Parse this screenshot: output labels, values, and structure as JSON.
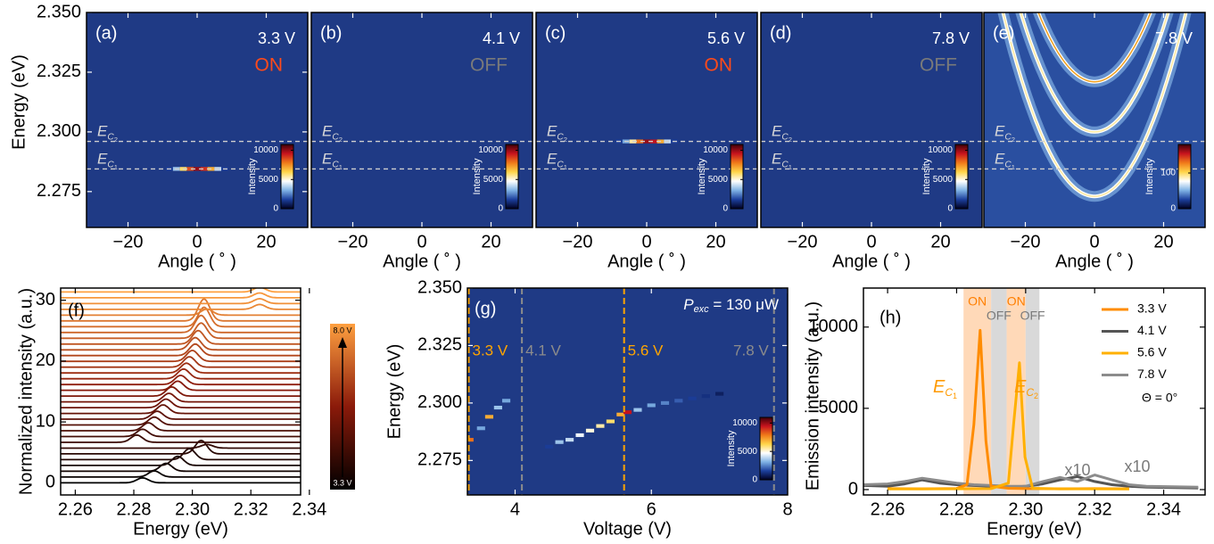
{
  "chart_data": [
    {
      "type": "angle-map",
      "panel": "(a)",
      "voltage": "3.3 V",
      "state": "ON",
      "state_color": "#ff4a1a",
      "xlabel": "Angle ( ˚ )",
      "ylabel": "Energy (eV)",
      "xlim": [
        -32,
        32
      ],
      "xticks": [
        {
          "value": -20,
          "label": "−20"
        },
        0,
        20
      ],
      "ylim": [
        2.26,
        2.35
      ],
      "yticks": [
        {
          "value": 2.35,
          "label": "2.350"
        },
        {
          "value": 2.325,
          "label": "2.325"
        },
        {
          "value": 2.3,
          "label": "2.300"
        },
        {
          "value": 2.275,
          "label": "2.275"
        }
      ],
      "mode_lines": [
        {
          "symbol": "E",
          "sub": "C",
          "index": "2",
          "value": 2.296
        },
        {
          "symbol": "E",
          "sub": "C",
          "index": "1",
          "value": 2.2845
        }
      ],
      "emission": {
        "energy": 2.2845,
        "angles": [
          -8,
          -6,
          -4,
          -2,
          0,
          2,
          4,
          6,
          8
        ],
        "intensities": [
          1500,
          3500,
          6000,
          8500,
          10000,
          9000,
          7000,
          4000,
          1500
        ]
      },
      "colorbar": {
        "label": "Intensity",
        "clim": [
          0,
          11000
        ],
        "ticks": [
          0,
          5000,
          10000
        ]
      }
    },
    {
      "type": "angle-map",
      "panel": "(b)",
      "voltage": "4.1 V",
      "state": "OFF",
      "state_color": "#7a7a7a",
      "xlabel": "Angle ( ˚ )",
      "xlim": [
        -32,
        32
      ],
      "xticks": [
        {
          "value": -20,
          "label": "−20"
        },
        0,
        20
      ],
      "ylim": [
        2.26,
        2.35
      ],
      "mode_lines": [
        {
          "symbol": "E",
          "sub": "C",
          "index": "2",
          "value": 2.296
        },
        {
          "symbol": "E",
          "sub": "C",
          "index": "1",
          "value": 2.2845
        }
      ],
      "colorbar": {
        "label": "Intensity",
        "clim": [
          0,
          11000
        ],
        "ticks": [
          0,
          5000,
          10000
        ]
      }
    },
    {
      "type": "angle-map",
      "panel": "(c)",
      "voltage": "5.6 V",
      "state": "ON",
      "state_color": "#ff4a1a",
      "xlabel": "Angle ( ˚ )",
      "xlim": [
        -32,
        32
      ],
      "xticks": [
        {
          "value": -20,
          "label": "−20"
        },
        0,
        20
      ],
      "ylim": [
        2.26,
        2.35
      ],
      "mode_lines": [
        {
          "symbol": "E",
          "sub": "C",
          "index": "2",
          "value": 2.296
        },
        {
          "symbol": "E",
          "sub": "C",
          "index": "1",
          "value": 2.2845
        }
      ],
      "emission": {
        "energy": 2.296,
        "angles": [
          -8,
          -6,
          -4,
          -2,
          0,
          2,
          4,
          6,
          8
        ],
        "intensities": [
          1500,
          3000,
          5500,
          8000,
          10000,
          9500,
          7000,
          4000,
          1500
        ]
      },
      "colorbar": {
        "label": "Intensity",
        "clim": [
          0,
          11000
        ],
        "ticks": [
          0,
          5000,
          10000
        ]
      }
    },
    {
      "type": "angle-map",
      "panel": "(d)",
      "voltage": "7.8 V",
      "state": "OFF",
      "state_color": "#7a7a7a",
      "xlabel": "Angle ( ˚ )",
      "xlim": [
        -32,
        32
      ],
      "xticks": [
        {
          "value": -20,
          "label": "−20"
        },
        0,
        20
      ],
      "ylim": [
        2.26,
        2.35
      ],
      "mode_lines": [
        {
          "symbol": "E",
          "sub": "C",
          "index": "2",
          "value": 2.296
        },
        {
          "symbol": "E",
          "sub": "C",
          "index": "1",
          "value": 2.2845
        }
      ],
      "colorbar": {
        "label": "Intensity",
        "clim": [
          0,
          11000
        ],
        "ticks": [
          0,
          5000,
          10000
        ]
      }
    },
    {
      "type": "angle-map",
      "panel": "(e)",
      "voltage": "7.8 V",
      "xlabel": "Angle ( ˚ )",
      "xlim": [
        -32,
        32
      ],
      "xticks": [
        {
          "value": -20,
          "label": "−20"
        },
        0,
        20
      ],
      "ylim": [
        2.26,
        2.35
      ],
      "mode_lines": [
        {
          "symbol": "E",
          "sub": "C",
          "index": "2",
          "value": 2.296
        },
        {
          "symbol": "E",
          "sub": "C",
          "index": "1",
          "value": 2.2845
        }
      ],
      "modes": {
        "vertex_energies": [
          2.321,
          2.3,
          2.273
        ]
      },
      "colorbar": {
        "label": "Intensity",
        "clim": [
          0,
          180
        ],
        "ticks": [
          0,
          100
        ]
      }
    },
    {
      "type": "waterfall",
      "panel": "(f)",
      "xlabel": "Energy (eV)",
      "ylabel": "Normalized intensity (a.u.)",
      "xlim": [
        2.255,
        2.337
      ],
      "xticks": [
        2.26,
        2.28,
        {
          "value": 2.3,
          "label": "2.30"
        },
        2.32,
        2.34
      ],
      "ylim": [
        -2,
        32
      ],
      "yticks": [
        0,
        10,
        20,
        30
      ],
      "colormap": [
        "#000000",
        "#8b1a0a",
        "#ffa040"
      ],
      "colorbar": {
        "top": "8.0 V",
        "bottom": "3.3 V"
      },
      "offsets": [
        0,
        0.95,
        1.9,
        2.85,
        3.8,
        4.75,
        5.7,
        6.65,
        7.6,
        8.55,
        9.5,
        10.45,
        11.4,
        12.35,
        13.3,
        14.25,
        15.2,
        16.15,
        17.1,
        18.05,
        19,
        19.95,
        20.9,
        21.85,
        22.8,
        23.75,
        24.7,
        25.65,
        26.6,
        27.55,
        28.5,
        29.45,
        30.4,
        31.35
      ],
      "peaks": [
        2.283,
        2.287,
        2.291,
        2.295,
        2.299,
        2.303,
        2.305,
        2.281,
        2.283,
        2.285,
        2.287,
        2.288,
        2.29,
        2.291,
        2.292,
        2.293,
        2.295,
        2.296,
        2.297,
        2.298,
        2.299,
        2.3,
        2.301,
        2.301,
        2.302,
        2.303,
        2.303,
        2.304,
        2.304,
        2.305,
        2.323,
        2.323,
        2.323,
        2.323
      ],
      "heights": [
        0.8,
        1,
        1.3,
        1.5,
        1.8,
        2.2,
        0.6,
        1.2,
        1.2,
        1.3,
        1.3,
        1.3,
        1.4,
        1.4,
        1.4,
        1.5,
        1.5,
        1.5,
        1.6,
        1.6,
        1.7,
        1.8,
        1.9,
        2,
        2.2,
        2.5,
        2.8,
        3.2,
        3.6,
        1,
        0.8,
        0.8,
        0.8,
        0.8
      ]
    },
    {
      "type": "voltage-map",
      "panel": "(g)",
      "xlabel": "Voltage (V)",
      "ylabel": "Energy (eV)",
      "xlim": [
        3.3,
        8
      ],
      "xticks": [
        4,
        6,
        8
      ],
      "ylim": [
        2.26,
        2.35
      ],
      "yticks": [
        {
          "value": 2.35,
          "label": "2.350"
        },
        {
          "value": 2.325,
          "label": "2.325"
        },
        {
          "value": 2.3,
          "label": "2.300"
        },
        {
          "value": 2.275,
          "label": "2.275"
        }
      ],
      "annotation": {
        "symbol": "P",
        "sub": "exc",
        "text": " = 130 μW"
      },
      "voltage_lines": [
        {
          "value": 3.3,
          "label": "3.3 V",
          "color": "#ffa500"
        },
        {
          "value": 4.1,
          "label": "4.1 V",
          "color": "#8c8c8c"
        },
        {
          "value": 5.6,
          "label": "5.6 V",
          "color": "#ffa500"
        },
        {
          "value": 7.8,
          "label": "7.8 V",
          "color": "#8c8c8c"
        }
      ],
      "voltages": [
        3.33,
        3.5,
        3.62,
        3.75,
        3.87,
        4.5,
        4.65,
        4.8,
        4.95,
        5.1,
        5.25,
        5.4,
        5.55,
        5.65,
        5.8,
        6.0,
        6.2,
        6.4,
        6.6,
        6.8,
        7.0
      ],
      "energies": [
        2.284,
        2.289,
        2.294,
        2.298,
        2.301,
        2.281,
        2.283,
        2.284,
        2.286,
        2.288,
        2.29,
        2.292,
        2.295,
        2.296,
        2.297,
        2.299,
        2.3,
        2.301,
        2.302,
        2.303,
        2.304
      ],
      "intensities": [
        8000,
        3000,
        7000,
        3500,
        3000,
        1500,
        3500,
        4000,
        4500,
        5000,
        5500,
        6000,
        7000,
        9500,
        3500,
        3000,
        2500,
        2000,
        1500,
        1200,
        800
      ],
      "colorbar": {
        "label": "Intensity",
        "clim": [
          0,
          11000
        ],
        "ticks": [
          0,
          5000,
          10000
        ]
      }
    },
    {
      "type": "line",
      "panel": "(h)",
      "xlabel": "Energy (eV)",
      "ylabel": "Emission intensity (a.u.)",
      "xlim": [
        2.253,
        2.352
      ],
      "xticks": [
        2.26,
        2.28,
        {
          "value": 2.3,
          "label": "2.30"
        },
        2.32,
        2.34
      ],
      "ylim": [
        -330,
        12400
      ],
      "yticks": [
        0,
        5000,
        10000
      ],
      "legend": "upper right",
      "note": "Θ = 0°",
      "bands": [
        {
          "from": 2.282,
          "to": 2.29,
          "label": "ON",
          "color": "#ffd9b8",
          "text_color": "#ff7f00"
        },
        {
          "from": 2.29,
          "to": 2.2945,
          "label": "OFF",
          "color": "#d9d9d9",
          "text_color": "#7a7a7a"
        },
        {
          "from": 2.2945,
          "to": 2.3,
          "label": "ON",
          "color": "#ffd9b8",
          "text_color": "#ff7f00"
        },
        {
          "from": 2.3,
          "to": 2.304,
          "label": "OFF",
          "color": "#d9d9d9",
          "text_color": "#7a7a7a"
        }
      ],
      "peak_labels": [
        {
          "symbol": "E",
          "sub": "C",
          "index": "1"
        },
        {
          "symbol": "E",
          "sub": "C",
          "index": "2"
        }
      ],
      "scale_labels": [
        "x10",
        "x10"
      ],
      "series": [
        {
          "name": "3.3 V",
          "color": "#ff8c00",
          "x": [
            2.26,
            2.27,
            2.28,
            2.283,
            2.285,
            2.2868,
            2.2885,
            2.29,
            2.295,
            2.3,
            2.31,
            2.32,
            2.33
          ],
          "values": [
            60,
            50,
            70,
            300,
            4000,
            9800,
            3000,
            200,
            80,
            60,
            50,
            60,
            50
          ]
        },
        {
          "name": "4.1 V",
          "color": "#555555",
          "x": [
            2.253,
            2.26,
            2.265,
            2.27,
            2.275,
            2.28,
            2.285,
            2.29,
            2.295,
            2.3,
            2.305,
            2.31,
            2.315,
            2.32,
            2.325,
            2.33,
            2.335,
            2.35
          ],
          "values": [
            250,
            200,
            350,
            600,
            400,
            300,
            250,
            200,
            150,
            200,
            350,
            600,
            800,
            500,
            300,
            200,
            150,
            100
          ]
        },
        {
          "name": "5.6 V",
          "color": "#ffb000",
          "x": [
            2.26,
            2.28,
            2.29,
            2.295,
            2.2965,
            2.2982,
            2.2998,
            2.302,
            2.31,
            2.33
          ],
          "values": [
            40,
            50,
            60,
            400,
            4000,
            7800,
            2000,
            80,
            50,
            40
          ]
        },
        {
          "name": "7.8 V",
          "color": "#8c8c8c",
          "x": [
            2.253,
            2.26,
            2.265,
            2.27,
            2.275,
            2.28,
            2.285,
            2.29,
            2.295,
            2.3,
            2.305,
            2.31,
            2.315,
            2.32,
            2.325,
            2.33,
            2.335,
            2.35
          ],
          "values": [
            300,
            350,
            500,
            700,
            550,
            400,
            300,
            250,
            200,
            200,
            500,
            750,
            500,
            900,
            600,
            300,
            200,
            150
          ]
        }
      ]
    }
  ]
}
